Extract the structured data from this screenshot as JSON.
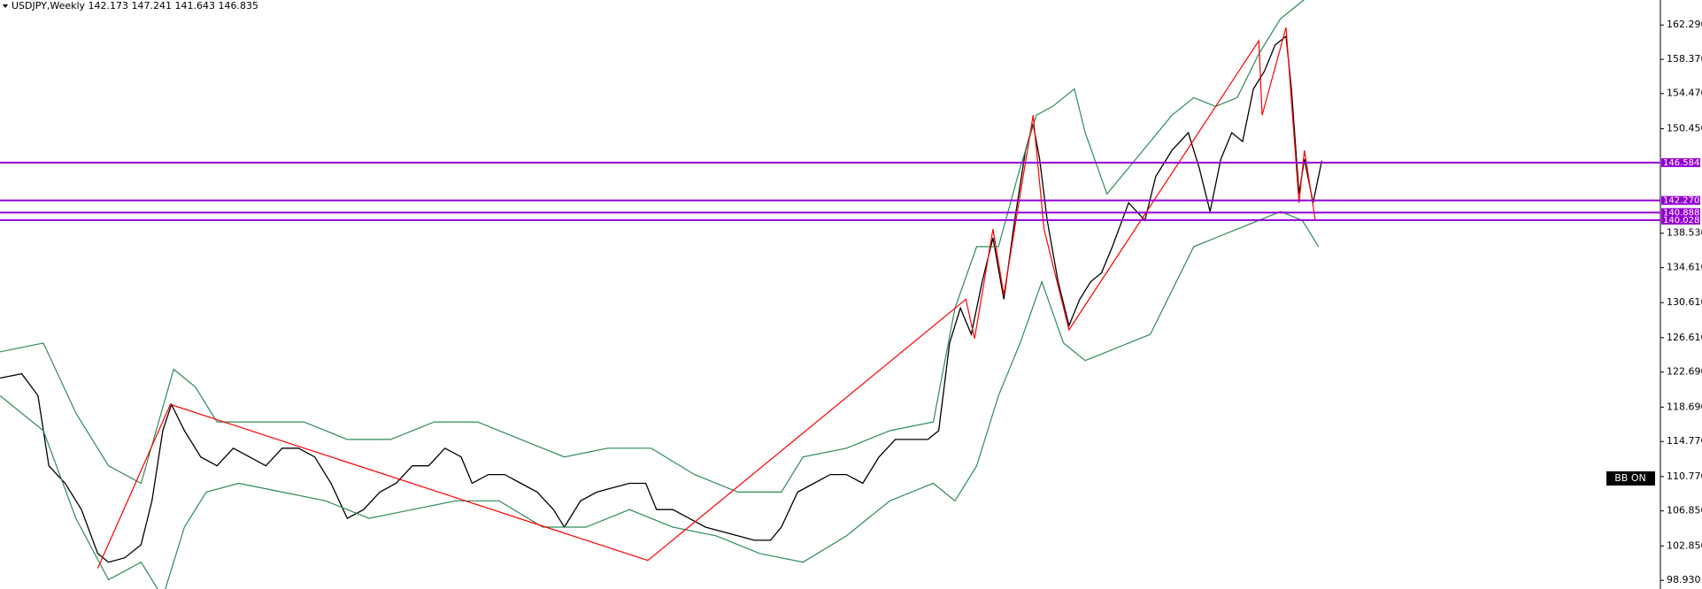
{
  "chart_data": {
    "type": "line",
    "title": "USDJPY,Weekly  142.173 147.241 141.643 146.835",
    "badge": "BB ON",
    "xlim": [
      0,
      1530
    ],
    "ylim": [
      97.94,
      165.14
    ],
    "yticks": [
      {
        "value": 162.29,
        "label": "162.290"
      },
      {
        "value": 158.37,
        "label": "158.370"
      },
      {
        "value": 154.47,
        "label": "154.470"
      },
      {
        "value": 150.45,
        "label": "150.450"
      },
      {
        "value": 138.53,
        "label": "138.530"
      },
      {
        "value": 134.61,
        "label": "134.610"
      },
      {
        "value": 130.61,
        "label": "130.610"
      },
      {
        "value": 126.61,
        "label": "126.610"
      },
      {
        "value": 122.69,
        "label": "122.690"
      },
      {
        "value": 118.69,
        "label": "118.690"
      },
      {
        "value": 114.77,
        "label": "114.770"
      },
      {
        "value": 110.77,
        "label": "110.770"
      },
      {
        "value": 106.85,
        "label": "106.850"
      },
      {
        "value": 102.85,
        "label": "102.850"
      },
      {
        "value": 98.93,
        "label": "98.930"
      }
    ],
    "levels": {
      "color": "#9400d3",
      "values": [
        {
          "value": 146.584,
          "label": "146.584"
        },
        {
          "value": 142.27,
          "label": "142.270"
        },
        {
          "value": 140.888,
          "label": "140.888"
        },
        {
          "value": 140.028,
          "label": "140.028"
        }
      ]
    },
    "series": [
      {
        "color": "#000000",
        "x": [
          0,
          20,
          35,
          45,
          60,
          75,
          90,
          100,
          115,
          130,
          140,
          150,
          158,
          170,
          185,
          200,
          215,
          230,
          245,
          260,
          275,
          290,
          305,
          320,
          335,
          350,
          365,
          380,
          395,
          410,
          425,
          435,
          450,
          465,
          480,
          495,
          510,
          520,
          535,
          550,
          565,
          580,
          595,
          605,
          620,
          635,
          650,
          665,
          680,
          695,
          710,
          720,
          735,
          750,
          765,
          780,
          795,
          810,
          825,
          840,
          855,
          865,
          875,
          885,
          895,
          905,
          915,
          925,
          935,
          945,
          952,
          958,
          965,
          975,
          985,
          995,
          1005,
          1015,
          1025,
          1040,
          1055,
          1065,
          1080,
          1095,
          1105,
          1115,
          1125,
          1135,
          1145,
          1155,
          1165,
          1175,
          1185,
          1190,
          1197,
          1202,
          1210,
          1218
        ],
        "values": [
          122,
          122.5,
          120,
          112,
          110,
          107,
          102,
          101,
          101.5,
          103,
          108,
          116,
          119,
          116,
          113,
          112,
          114,
          113,
          112,
          114,
          114,
          113,
          110,
          106,
          107,
          109,
          110,
          112,
          112,
          114,
          113,
          110,
          111,
          111,
          110,
          109,
          107,
          105,
          108,
          109,
          109.5,
          110,
          110,
          107,
          107,
          106,
          105,
          104.5,
          104,
          103.5,
          103.5,
          105,
          109,
          110,
          111,
          111,
          110,
          113,
          115,
          115,
          115,
          116,
          126,
          130,
          127,
          133,
          138,
          131,
          140,
          148,
          151,
          147,
          140,
          133,
          128,
          131,
          133,
          134,
          137,
          142,
          140,
          145,
          148,
          150,
          146,
          141,
          147,
          150,
          149,
          155,
          157,
          160,
          161,
          155,
          143,
          147,
          142,
          146.8
        ]
      },
      {
        "color": "#2e8b57",
        "x": [
          0,
          40,
          70,
          100,
          130,
          160,
          180,
          200,
          240,
          280,
          320,
          360,
          400,
          440,
          480,
          520,
          560,
          600,
          640,
          680,
          720,
          740,
          780,
          820,
          860,
          880,
          900,
          920,
          940,
          955,
          970,
          990,
          1000,
          1020,
          1040,
          1060,
          1080,
          1100,
          1120,
          1140,
          1160,
          1180,
          1200,
          1210
        ],
        "values": [
          125,
          126,
          118,
          112,
          110,
          123,
          121,
          117,
          117,
          117,
          115,
          115,
          117,
          117,
          115,
          113,
          114,
          114,
          111,
          109,
          109,
          113,
          114,
          116,
          117,
          130,
          137,
          137,
          146,
          152,
          153,
          155,
          150,
          143,
          146,
          149,
          152,
          154,
          153,
          154,
          159,
          163,
          165,
          166
        ]
      },
      {
        "color": "#2e8b57",
        "x": [
          0,
          40,
          70,
          100,
          130,
          150,
          170,
          190,
          220,
          260,
          300,
          340,
          380,
          420,
          460,
          500,
          540,
          580,
          620,
          660,
          700,
          740,
          780,
          820,
          860,
          880,
          900,
          920,
          940,
          960,
          980,
          1000,
          1020,
          1040,
          1060,
          1080,
          1100,
          1120,
          1140,
          1160,
          1180,
          1200,
          1215
        ],
        "values": [
          120,
          116,
          106,
          99,
          101,
          97,
          105,
          109,
          110,
          109,
          108,
          106,
          107,
          108,
          108,
          105,
          105,
          107,
          105,
          104,
          102,
          101,
          104,
          108,
          110,
          108,
          112,
          120,
          126,
          133,
          126,
          124,
          125,
          126,
          127,
          132,
          137,
          138,
          139,
          140,
          141,
          140,
          137
        ]
      },
      {
        "color": "#ff0000",
        "x": [
          90,
          157,
          597,
          890,
          898,
          915,
          925,
          952,
          962,
          985,
          1160,
          1163,
          1185,
          1197,
          1202,
          1212
        ],
        "values": [
          100.3,
          119,
          101.2,
          131,
          126.5,
          139,
          131.5,
          152,
          139,
          127.5,
          160.5,
          152,
          162,
          142,
          148,
          140
        ]
      }
    ]
  }
}
